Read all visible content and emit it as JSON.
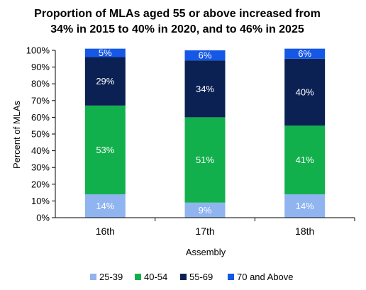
{
  "chart_data": {
    "type": "bar",
    "stacked": true,
    "title_lines": [
      "Proportion of MLAs aged 55 or above increased from",
      "34% in 2015 to 40% in 2020, and to 46% in 2025"
    ],
    "xlabel": "Assembly",
    "ylabel": "Percent of MLAs",
    "ylim": [
      0,
      100
    ],
    "yticks": [
      "0%",
      "10%",
      "20%",
      "30%",
      "40%",
      "50%",
      "60%",
      "70%",
      "80%",
      "90%",
      "100%"
    ],
    "categories": [
      "16th",
      "17th",
      "18th"
    ],
    "series": [
      {
        "name": "25-39",
        "color": "#8fb4f0",
        "label_color": "#ffffff",
        "values": [
          14,
          9,
          14
        ]
      },
      {
        "name": "40-54",
        "color": "#12b04c",
        "label_color": "#ffffff",
        "values": [
          53,
          51,
          41
        ]
      },
      {
        "name": "55-69",
        "color": "#0b2154",
        "label_color": "#ffffff",
        "values": [
          29,
          34,
          40
        ]
      },
      {
        "name": "70 and Above",
        "color": "#1557e6",
        "label_color": "#ffffff",
        "values": [
          5,
          6,
          6
        ]
      }
    ],
    "data_labels": [
      [
        "14%",
        "9%",
        "14%"
      ],
      [
        "53%",
        "51%",
        "41%"
      ],
      [
        "29%",
        "34%",
        "40%"
      ],
      [
        "5%",
        "6%",
        "6%"
      ]
    ],
    "grid": false,
    "legend_position": "bottom"
  }
}
